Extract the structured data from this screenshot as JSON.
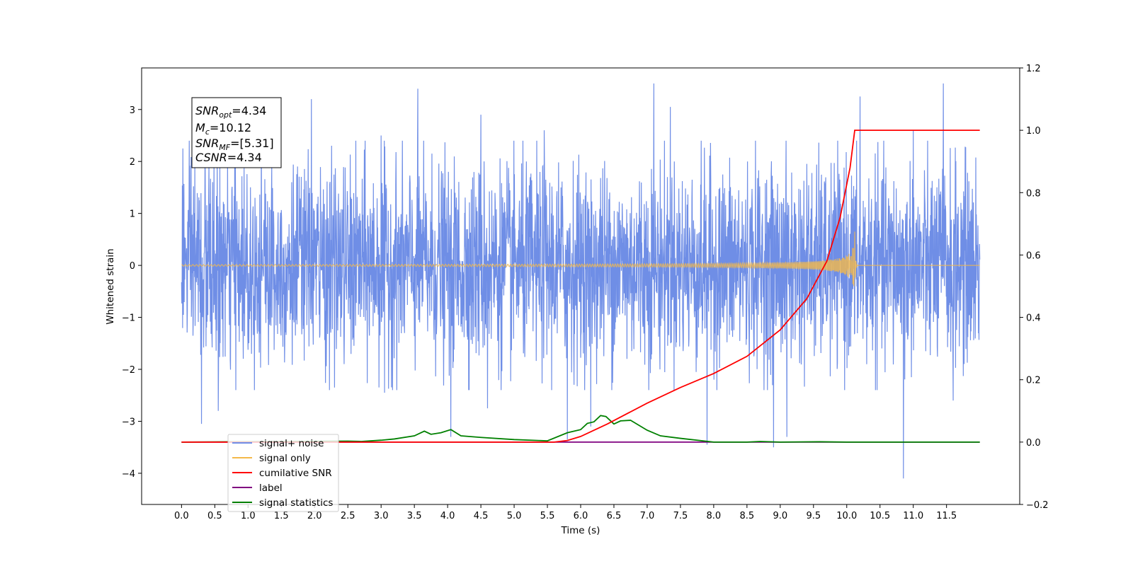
{
  "chart_data": {
    "type": "line",
    "title": "",
    "xlabel": "Time (s)",
    "ylabel": "Whitened strain",
    "y2label": "",
    "xlim": [
      -0.6,
      12.6
    ],
    "ylim": [
      -4.6,
      3.8
    ],
    "y2lim": [
      -0.2,
      1.2
    ],
    "x_ticks": [
      "0.0",
      "0.5",
      "1.0",
      "1.5",
      "2.0",
      "2.5",
      "3.0",
      "3.5",
      "4.0",
      "4.5",
      "5.0",
      "5.5",
      "6.0",
      "6.5",
      "7.0",
      "7.5",
      "8.0",
      "8.5",
      "9.0",
      "9.5",
      "10.0",
      "10.5",
      "11.0",
      "11.5"
    ],
    "y_ticks": [
      "3",
      "2",
      "1",
      "0",
      "−1",
      "−2",
      "−3",
      "−4"
    ],
    "y2_ticks": [
      "1.2",
      "1.0",
      "0.8",
      "0.6",
      "0.4",
      "0.2",
      "0.0",
      "−0.2"
    ],
    "grid": false,
    "legend_position": "lower-left",
    "annotation": {
      "snr_opt": {
        "main": "SNR",
        "sub": "opt",
        "rest": "=4.34"
      },
      "mc": {
        "main": "M",
        "sub": "c",
        "rest": "=10.12"
      },
      "snr_mf": {
        "main": "SNR",
        "sub": "MF",
        "rest": "=[5.31]"
      },
      "csnr": {
        "main": "CSNR",
        "sub": "",
        "rest": "=4.34"
      }
    },
    "series": [
      {
        "name": "signal+ noise",
        "axis": "left",
        "color": "#6f8ee6",
        "kind": "noise",
        "x_range": [
          0.0,
          12.0
        ],
        "std": 0.95,
        "spikes": [
          [
            0.02,
            2.25
          ],
          [
            0.2,
            2.0
          ],
          [
            0.3,
            -3.05
          ],
          [
            0.55,
            -2.8
          ],
          [
            0.8,
            2.6
          ],
          [
            1.2,
            2.7
          ],
          [
            1.95,
            3.2
          ],
          [
            2.3,
            -2.35
          ],
          [
            3.05,
            -2.45
          ],
          [
            3.0,
            2.5
          ],
          [
            3.55,
            3.4
          ],
          [
            4.05,
            -3.3
          ],
          [
            4.5,
            2.9
          ],
          [
            4.6,
            -2.75
          ],
          [
            5.45,
            2.6
          ],
          [
            5.8,
            -3.35
          ],
          [
            6.15,
            -3.1
          ],
          [
            7.1,
            3.5
          ],
          [
            7.35,
            3.05
          ],
          [
            7.9,
            -3.45
          ],
          [
            8.9,
            -3.5
          ],
          [
            9.1,
            -3.3
          ],
          [
            10.2,
            3.25
          ],
          [
            10.85,
            -4.1
          ],
          [
            11.0,
            2.6
          ],
          [
            11.45,
            3.5
          ],
          [
            11.6,
            -2.6
          ]
        ]
      },
      {
        "name": "signal only",
        "axis": "left",
        "color": "#f4b94a",
        "kind": "chirp",
        "x_range": [
          0.0,
          12.0
        ],
        "merger": 10.12,
        "peak": 0.65
      },
      {
        "name": "cumilative SNR",
        "axis": "right",
        "color": "#ff0000",
        "x": [
          0.0,
          5.6,
          5.8,
          6.0,
          6.4,
          7.0,
          7.5,
          8.0,
          8.5,
          9.0,
          9.4,
          9.7,
          9.9,
          10.05,
          10.12,
          10.2,
          11.0,
          12.0
        ],
        "y": [
          0.0,
          0.0,
          0.005,
          0.018,
          0.058,
          0.125,
          0.175,
          0.22,
          0.275,
          0.36,
          0.46,
          0.58,
          0.72,
          0.88,
          1.0,
          1.0,
          1.0,
          1.0
        ]
      },
      {
        "name": "label",
        "axis": "right",
        "color": "#800080",
        "x": [
          0.0,
          12.0
        ],
        "y": [
          0.0,
          0.0
        ]
      },
      {
        "name": "signal statistics",
        "axis": "right",
        "color": "#008000",
        "x": [
          0.0,
          2.5,
          2.7,
          3.0,
          3.2,
          3.5,
          3.65,
          3.75,
          3.9,
          4.05,
          4.2,
          4.5,
          5.0,
          5.5,
          5.8,
          6.0,
          6.1,
          6.2,
          6.3,
          6.38,
          6.5,
          6.6,
          6.75,
          7.0,
          7.2,
          7.5,
          8.0,
          8.5,
          8.7,
          9.0,
          9.6,
          10.0,
          12.0
        ],
        "y": [
          0.0,
          0.003,
          0.002,
          0.006,
          0.01,
          0.02,
          0.035,
          0.025,
          0.03,
          0.04,
          0.02,
          0.015,
          0.008,
          0.004,
          0.03,
          0.04,
          0.06,
          0.065,
          0.085,
          0.082,
          0.058,
          0.068,
          0.07,
          0.038,
          0.02,
          0.012,
          0.0,
          0.0,
          0.002,
          0.0,
          0.001,
          0.0,
          0.0
        ]
      }
    ],
    "legend": [
      {
        "label": "signal+ noise",
        "color": "#6f8ee6"
      },
      {
        "label": "signal only",
        "color": "#f4b94a"
      },
      {
        "label": "cumilative SNR",
        "color": "#ff0000"
      },
      {
        "label": "label",
        "color": "#800080"
      },
      {
        "label": "signal statistics",
        "color": "#008000"
      }
    ]
  }
}
